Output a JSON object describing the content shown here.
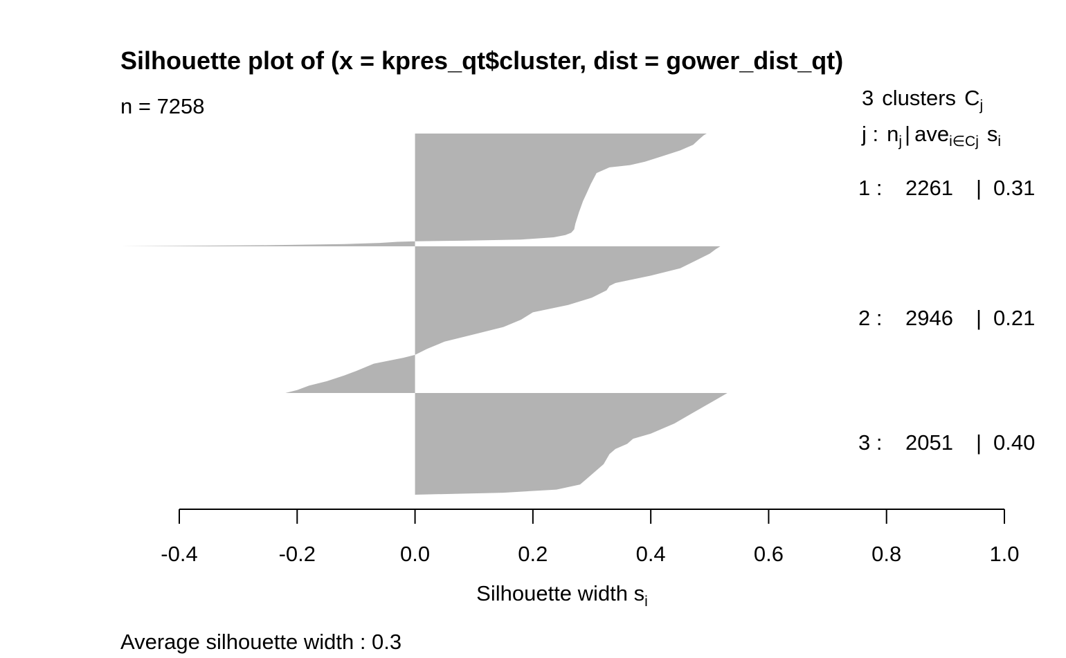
{
  "chart_data": {
    "type": "bar",
    "title": "Silhouette plot of (x = kpres_qt$cluster, dist = gower_dist_qt)",
    "n_label": "n = 7258",
    "header": {
      "line1": {
        "num": "3",
        "word": "clusters",
        "sym": "C",
        "sub": "j"
      },
      "line2": {
        "j": "j :",
        "n": "n",
        "nsub": "j",
        "bar": "|",
        "ave": "ave",
        "avesub": "i∈Cj",
        "s": "s",
        "ssub": "i"
      }
    },
    "xlabel": {
      "text": "Silhouette width s",
      "sub": "i"
    },
    "footer": "Average silhouette width :  0.3",
    "xlim": [
      -0.4,
      1.0
    ],
    "xticks": [
      -0.4,
      -0.2,
      0.0,
      0.2,
      0.4,
      0.6,
      0.8,
      1.0
    ],
    "xtick_labels": [
      "-0.4",
      "-0.2",
      "0.0",
      "0.2",
      "0.4",
      "0.6",
      "0.8",
      "1.0"
    ],
    "bar_color": "#b3b3b3",
    "clusters": [
      {
        "id": 1,
        "size": 2261,
        "avg_width": 0.31,
        "label": {
          "id": "1 :",
          "size": "2261",
          "sep": "|",
          "avg": "0.31"
        },
        "profile": [
          [
            0.0,
            0.495
          ],
          [
            0.015,
            0.49
          ],
          [
            0.05,
            0.482
          ],
          [
            0.1,
            0.472
          ],
          [
            0.15,
            0.45
          ],
          [
            0.2,
            0.42
          ],
          [
            0.25,
            0.39
          ],
          [
            0.28,
            0.365
          ],
          [
            0.3,
            0.33
          ],
          [
            0.35,
            0.308
          ],
          [
            0.45,
            0.298
          ],
          [
            0.52,
            0.292
          ],
          [
            0.6,
            0.285
          ],
          [
            0.7,
            0.278
          ],
          [
            0.8,
            0.272
          ],
          [
            0.85,
            0.27
          ],
          [
            0.88,
            0.265
          ],
          [
            0.9,
            0.255
          ],
          [
            0.92,
            0.235
          ],
          [
            0.94,
            0.18
          ],
          [
            0.95,
            0.08
          ],
          [
            0.955,
            0.0
          ],
          [
            0.96,
            -0.03
          ],
          [
            0.97,
            -0.06
          ],
          [
            0.98,
            -0.12
          ],
          [
            0.99,
            -0.25
          ],
          [
            1.0,
            -0.5
          ]
        ]
      },
      {
        "id": 2,
        "size": 2946,
        "avg_width": 0.21,
        "label": {
          "id": "2 :",
          "size": "2946",
          "sep": "|",
          "avg": "0.21"
        },
        "profile": [
          [
            0.0,
            0.518
          ],
          [
            0.02,
            0.51
          ],
          [
            0.05,
            0.5
          ],
          [
            0.1,
            0.475
          ],
          [
            0.15,
            0.45
          ],
          [
            0.2,
            0.4
          ],
          [
            0.25,
            0.34
          ],
          [
            0.27,
            0.33
          ],
          [
            0.3,
            0.325
          ],
          [
            0.35,
            0.3
          ],
          [
            0.4,
            0.26
          ],
          [
            0.45,
            0.2
          ],
          [
            0.5,
            0.18
          ],
          [
            0.55,
            0.15
          ],
          [
            0.6,
            0.1
          ],
          [
            0.65,
            0.05
          ],
          [
            0.7,
            0.02
          ],
          [
            0.74,
            0.0
          ],
          [
            0.76,
            -0.02
          ],
          [
            0.8,
            -0.07
          ],
          [
            0.85,
            -0.1
          ],
          [
            0.88,
            -0.12
          ],
          [
            0.92,
            -0.15
          ],
          [
            0.95,
            -0.18
          ],
          [
            0.98,
            -0.2
          ],
          [
            1.0,
            -0.22
          ]
        ]
      },
      {
        "id": 3,
        "size": 2051,
        "avg_width": 0.4,
        "label": {
          "id": "3 :",
          "size": "2051",
          "sep": "|",
          "avg": "0.40"
        },
        "profile": [
          [
            0.0,
            0.53
          ],
          [
            0.05,
            0.515
          ],
          [
            0.1,
            0.5
          ],
          [
            0.2,
            0.47
          ],
          [
            0.3,
            0.44
          ],
          [
            0.4,
            0.4
          ],
          [
            0.45,
            0.37
          ],
          [
            0.5,
            0.36
          ],
          [
            0.55,
            0.34
          ],
          [
            0.6,
            0.33
          ],
          [
            0.7,
            0.32
          ],
          [
            0.8,
            0.3
          ],
          [
            0.85,
            0.29
          ],
          [
            0.9,
            0.28
          ],
          [
            0.95,
            0.24
          ],
          [
            0.98,
            0.15
          ],
          [
            1.0,
            0.0
          ]
        ]
      }
    ]
  }
}
